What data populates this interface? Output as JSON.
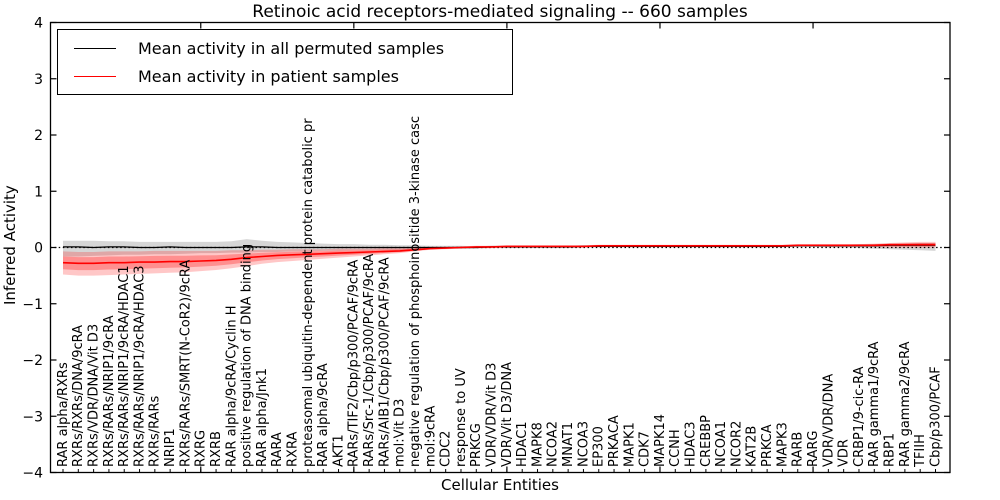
{
  "chart_data": {
    "type": "line",
    "title": "Retinoic acid receptors-mediated signaling -- 660 samples",
    "xlabel": "Cellular Entities",
    "ylabel": "Inferred Activity",
    "ylim": [
      -4,
      4
    ],
    "yticks": [
      4,
      3,
      2,
      1,
      0,
      -1,
      -2,
      -3,
      -4
    ],
    "grid": false,
    "legend_position": "upper left",
    "zero_line_style": "dotted",
    "colors": {
      "permuted": "#000000",
      "patient": "#ff0000",
      "permuted_band": "rgba(0,0,0,0.16)",
      "patient_band": "rgba(255,0,0,0.22)"
    },
    "categories": [
      "RAR alpha/RXRs",
      "RXRs/RXRs/DNA/9cRA",
      "RXRs/VDR/DNA/Vit D3",
      "RXRs/RARs/NRIP1/9cRA",
      "RXRs/RARs/NRIP1/9cRA/HDAC1",
      "RXRs/RARs/NRIP1/9cRA/HDAC3",
      "RXRs/RARs",
      "NRIP1",
      "RXRs/RARs/SMRT(N-CoR2)/9cRA",
      "RXRG",
      "RXRB",
      "RAR alpha/9cRA/Cyclin H",
      "positive regulation of DNA binding",
      "RAR alpha/Jnk1",
      "RARA",
      "RXRA",
      "proteasomal ubiquitin-dependent protein catabolic pr",
      "RAR alpha/9cRA",
      "AKT1",
      "RARs/TIF2/Cbp/p300/PCAF/9cRA",
      "RARs/Src-1/Cbp/p300/PCAF/9cRA",
      "RARs/AIB1/Cbp/p300/PCAF/9cRA",
      "mol:Vit D3",
      "negative regulation of phosphoinositide 3-kinase casc",
      "mol:9cRA",
      "CDC2",
      "response to UV",
      "PRKCG",
      "VDR/VDR/Vit D3",
      "VDR/Vit D3/DNA",
      "HDAC1",
      "MAPK8",
      "NCOA2",
      "MNAT1",
      "NCOA3",
      "EP300",
      "PRKACA",
      "MAPK1",
      "CDK7",
      "MAPK14",
      "CCNH",
      "HDAC3",
      "CREBBP",
      "NCOA1",
      "NCOR2",
      "KAT2B",
      "PRKCA",
      "MAPK3",
      "RARB",
      "RARG",
      "VDR/VDR/DNA",
      "VDR",
      "CRBP1/9-cic-RA",
      "RAR gamma1/9cRA",
      "RBP1",
      "RAR gamma2/9cRA",
      "TFIIH",
      "Cbp/p300/PCAF"
    ],
    "series": [
      {
        "name": "Mean activity in all permuted samples",
        "color": "#000000",
        "values": [
          0.01,
          0.01,
          0.0,
          0.01,
          0.01,
          0.0,
          0.0,
          0.01,
          0.0,
          0.0,
          0.0,
          0.0,
          0.01,
          0.01,
          0.0,
          0.0,
          0.0,
          0.0,
          0.0,
          0.0,
          0.0,
          0.0,
          0.0,
          0.0,
          0.0,
          0.0,
          0.0,
          0.0,
          0.01,
          0.01,
          0.01,
          0.01,
          0.01,
          0.01,
          0.02,
          0.02,
          0.02,
          0.02,
          0.02,
          0.02,
          0.02,
          0.02,
          0.02,
          0.02,
          0.02,
          0.02,
          0.02,
          0.02,
          0.03,
          0.03,
          0.03,
          0.03,
          0.03,
          0.03,
          0.04,
          0.04,
          0.04,
          0.04
        ],
        "band_lo": [
          -0.16,
          -0.16,
          -0.15,
          -0.14,
          -0.13,
          -0.13,
          -0.12,
          -0.12,
          -0.11,
          -0.1,
          -0.1,
          -0.09,
          -0.09,
          -0.08,
          -0.08,
          -0.07,
          -0.07,
          -0.06,
          -0.06,
          -0.05,
          -0.05,
          -0.04,
          -0.04,
          -0.03,
          -0.03,
          -0.02,
          -0.02,
          -0.02,
          -0.01,
          -0.01,
          -0.01,
          -0.01,
          -0.01,
          -0.01,
          0.0,
          0.0,
          0.0,
          0.0,
          0.0,
          0.0,
          0.0,
          0.0,
          0.0,
          0.0,
          0.0,
          0.0,
          0.0,
          0.0,
          0.01,
          0.01,
          0.0,
          0.0,
          -0.01,
          -0.02,
          -0.03,
          -0.04,
          -0.05,
          -0.06
        ],
        "band_hi": [
          0.12,
          0.12,
          0.12,
          0.11,
          0.11,
          0.1,
          0.1,
          0.1,
          0.1,
          0.1,
          0.1,
          0.11,
          0.15,
          0.12,
          0.1,
          0.09,
          0.08,
          0.07,
          0.06,
          0.06,
          0.05,
          0.05,
          0.04,
          0.04,
          0.03,
          0.03,
          0.03,
          0.02,
          0.03,
          0.03,
          0.03,
          0.03,
          0.03,
          0.03,
          0.04,
          0.04,
          0.04,
          0.04,
          0.04,
          0.04,
          0.04,
          0.04,
          0.04,
          0.04,
          0.04,
          0.04,
          0.04,
          0.04,
          0.05,
          0.05,
          0.05,
          0.05,
          0.06,
          0.06,
          0.07,
          0.07,
          0.08,
          0.08
        ]
      },
      {
        "name": "Mean activity in patient samples",
        "color": "#ff0000",
        "values": [
          -0.27,
          -0.28,
          -0.28,
          -0.27,
          -0.27,
          -0.26,
          -0.26,
          -0.25,
          -0.25,
          -0.24,
          -0.23,
          -0.21,
          -0.18,
          -0.16,
          -0.14,
          -0.13,
          -0.12,
          -0.11,
          -0.1,
          -0.09,
          -0.08,
          -0.07,
          -0.06,
          -0.04,
          -0.02,
          -0.01,
          0.0,
          0.01,
          0.01,
          0.02,
          0.02,
          0.02,
          0.02,
          0.02,
          0.02,
          0.03,
          0.03,
          0.03,
          0.03,
          0.03,
          0.03,
          0.03,
          0.03,
          0.03,
          0.03,
          0.03,
          0.03,
          0.03,
          0.04,
          0.04,
          0.04,
          0.04,
          0.04,
          0.04,
          0.05,
          0.05,
          0.05,
          0.05
        ],
        "band_lo": [
          -0.48,
          -0.5,
          -0.5,
          -0.49,
          -0.48,
          -0.47,
          -0.46,
          -0.45,
          -0.44,
          -0.42,
          -0.4,
          -0.37,
          -0.33,
          -0.29,
          -0.26,
          -0.24,
          -0.22,
          -0.2,
          -0.18,
          -0.16,
          -0.14,
          -0.12,
          -0.1,
          -0.07,
          -0.04,
          -0.03,
          -0.02,
          -0.01,
          -0.01,
          0.0,
          0.0,
          0.0,
          0.0,
          0.0,
          0.0,
          0.01,
          0.01,
          0.01,
          0.01,
          0.01,
          0.01,
          0.01,
          0.01,
          0.01,
          0.01,
          0.01,
          0.01,
          0.01,
          0.02,
          0.02,
          0.01,
          0.01,
          0.01,
          0.01,
          0.0,
          0.0,
          0.0,
          0.0
        ],
        "band_hi": [
          -0.07,
          -0.08,
          -0.08,
          -0.07,
          -0.07,
          -0.07,
          -0.06,
          -0.06,
          -0.06,
          -0.06,
          -0.06,
          -0.05,
          -0.05,
          -0.04,
          -0.04,
          -0.03,
          -0.03,
          -0.03,
          -0.02,
          -0.02,
          -0.02,
          -0.01,
          -0.01,
          0.0,
          0.0,
          0.01,
          0.02,
          0.03,
          0.03,
          0.04,
          0.04,
          0.04,
          0.04,
          0.04,
          0.04,
          0.05,
          0.05,
          0.05,
          0.05,
          0.05,
          0.05,
          0.05,
          0.05,
          0.05,
          0.05,
          0.05,
          0.05,
          0.05,
          0.06,
          0.06,
          0.06,
          0.06,
          0.06,
          0.07,
          0.08,
          0.09,
          0.1,
          0.1
        ]
      }
    ]
  }
}
